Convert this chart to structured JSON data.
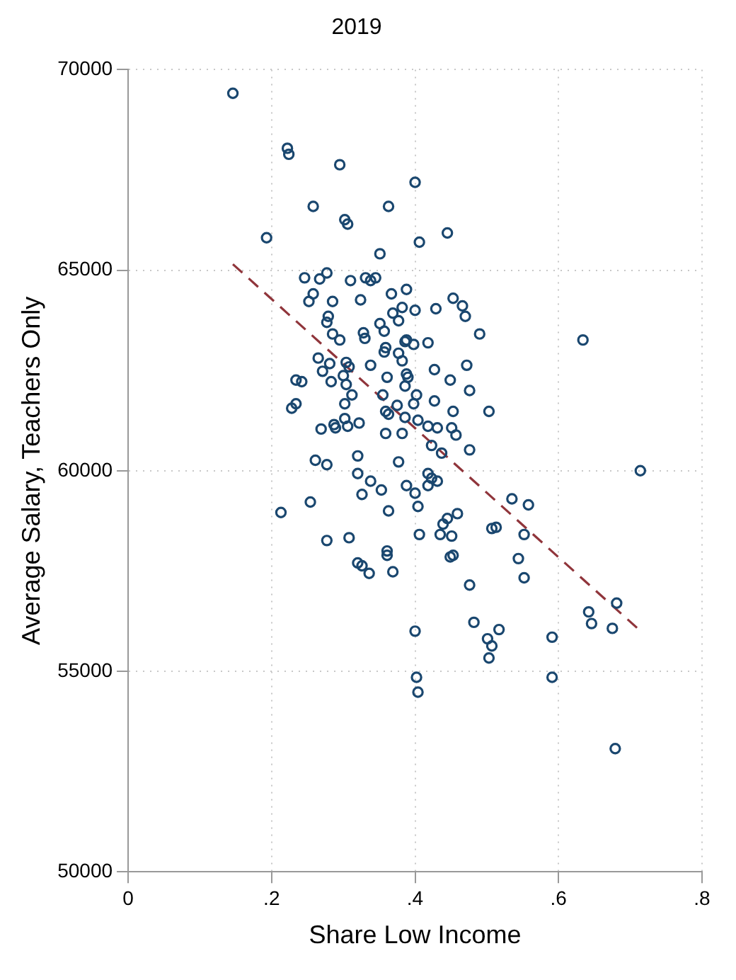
{
  "chart_data": {
    "type": "scatter",
    "title": "2019",
    "xlabel": "Share Low Income",
    "ylabel": "Average Salary, Teachers Only",
    "x": [
      0.146,
      0.222,
      0.224,
      0.295,
      0.4,
      0.258,
      0.302,
      0.306,
      0.363,
      0.406,
      0.193,
      0.351,
      0.445,
      0.246,
      0.267,
      0.277,
      0.31,
      0.331,
      0.338,
      0.345,
      0.258,
      0.252,
      0.285,
      0.324,
      0.367,
      0.388,
      0.382,
      0.4,
      0.429,
      0.369,
      0.377,
      0.279,
      0.277,
      0.351,
      0.357,
      0.285,
      0.295,
      0.328,
      0.33,
      0.388,
      0.398,
      0.418,
      0.359,
      0.357,
      0.377,
      0.382,
      0.265,
      0.281,
      0.271,
      0.304,
      0.308,
      0.338,
      0.388,
      0.39,
      0.386,
      0.361,
      0.427,
      0.283,
      0.3,
      0.304,
      0.234,
      0.242,
      0.355,
      0.402,
      0.312,
      0.302,
      0.375,
      0.398,
      0.228,
      0.234,
      0.359,
      0.363,
      0.386,
      0.404,
      0.418,
      0.269,
      0.287,
      0.289,
      0.302,
      0.306,
      0.322,
      0.359,
      0.382,
      0.453,
      0.466,
      0.47,
      0.49,
      0.386,
      0.472,
      0.449,
      0.476,
      0.427,
      0.453,
      0.503,
      0.634,
      0.431,
      0.451,
      0.457,
      0.423,
      0.437,
      0.476,
      0.377,
      0.714,
      0.418,
      0.423,
      0.431,
      0.418,
      0.388,
      0.4,
      0.404,
      0.535,
      0.558,
      0.459,
      0.445,
      0.439,
      0.435,
      0.451,
      0.406,
      0.507,
      0.513,
      0.552,
      0.449,
      0.453,
      0.544,
      0.552,
      0.476,
      0.642,
      0.681,
      0.646,
      0.675,
      0.482,
      0.517,
      0.501,
      0.507,
      0.503,
      0.591,
      0.4,
      0.402,
      0.404,
      0.591,
      0.679,
      0.261,
      0.277,
      0.32,
      0.32,
      0.338,
      0.326,
      0.353,
      0.363,
      0.254,
      0.213,
      0.277,
      0.308,
      0.32,
      0.326,
      0.336,
      0.361,
      0.361,
      0.369
    ],
    "xlim": [
      0,
      0.8
    ],
    "xticks": [
      {
        "value": 0,
        "label": "0"
      },
      {
        "value": 0.2,
        "label": ".2"
      },
      {
        "value": 0.4,
        "label": ".4"
      },
      {
        "value": 0.6,
        "label": ".6"
      },
      {
        "value": 0.8,
        "label": ".8"
      }
    ],
    "ylim": [
      50000,
      70000
    ],
    "yticks": [
      50000,
      55000,
      60000,
      65000,
      70000
    ],
    "grid": true,
    "legend": false,
    "marker": "circle",
    "series": [
      {
        "type": "scatter",
        "color": "#1a476f",
        "values": [
          69410,
          68040,
          67890,
          67630,
          67190,
          66590,
          66260,
          66150,
          66590,
          65700,
          65810,
          65410,
          65930,
          64810,
          64780,
          64930,
          64740,
          64810,
          64740,
          64810,
          64410,
          64220,
          64220,
          64260,
          64410,
          64520,
          64070,
          64000,
          64040,
          63930,
          63740,
          63850,
          63700,
          63670,
          63480,
          63410,
          63260,
          63440,
          63300,
          63260,
          63150,
          63190,
          63070,
          62960,
          62930,
          62740,
          62810,
          62670,
          62480,
          62700,
          62590,
          62630,
          62410,
          62330,
          62110,
          62330,
          62520,
          62220,
          62370,
          62150,
          62260,
          62220,
          61890,
          61890,
          61890,
          61670,
          61630,
          61670,
          61560,
          61670,
          61480,
          61410,
          61330,
          61260,
          61110,
          61040,
          61150,
          61070,
          61300,
          61110,
          61190,
          60930,
          60930,
          64300,
          64110,
          63850,
          63410,
          63220,
          62630,
          62260,
          62000,
          61740,
          61480,
          61480,
          63260,
          61070,
          61070,
          60890,
          60630,
          60440,
          60520,
          60220,
          60000,
          59930,
          59810,
          59740,
          59630,
          59630,
          59440,
          59110,
          59300,
          59150,
          58930,
          58810,
          58670,
          58410,
          58370,
          58410,
          58560,
          58590,
          58410,
          57850,
          57890,
          57810,
          57330,
          57150,
          56480,
          56700,
          56190,
          56070,
          56220,
          56040,
          55810,
          55630,
          55330,
          55850,
          56000,
          54850,
          54480,
          54850,
          53070,
          60260,
          60150,
          60370,
          59930,
          59740,
          59410,
          59520,
          59000,
          59220,
          58960,
          58260,
          58330,
          57700,
          57630,
          57440,
          58000,
          57890,
          57480
        ]
      },
      {
        "type": "line",
        "color": "#90353b",
        "line_style": "dashed",
        "marker": "none",
        "x": [
          0.146,
          0.712
        ],
        "values": [
          65150,
          56040
        ]
      }
    ]
  }
}
